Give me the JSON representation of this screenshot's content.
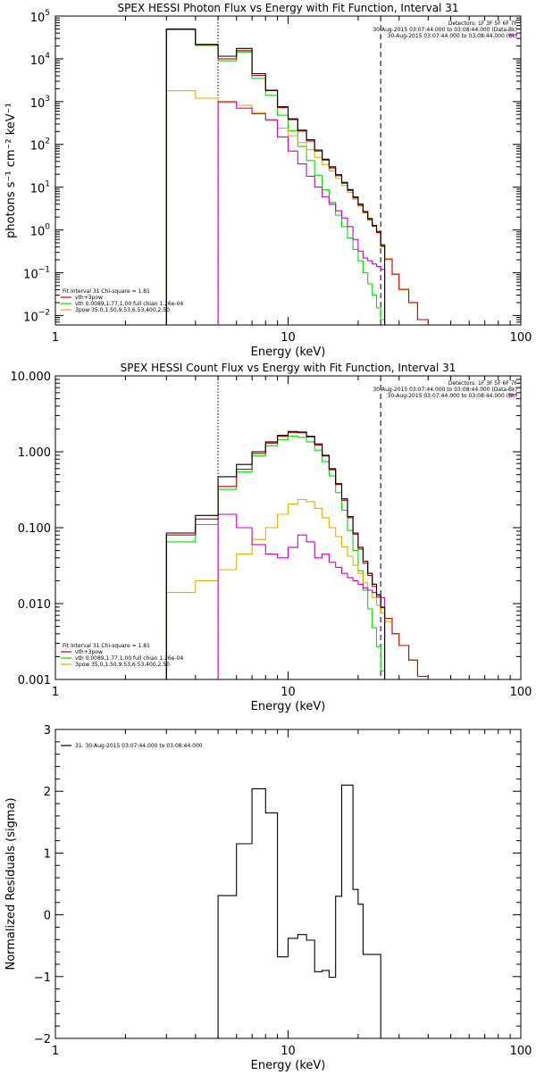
{
  "colors": {
    "frame": "#000000",
    "total": "#000000",
    "fit_sum": "#cc0000",
    "thermal": "#00e000",
    "nonthermal": "#e0b000",
    "background": "#cc00cc"
  },
  "chart_data": [
    {
      "type": "line",
      "title": "SPEX HESSI Photon Flux vs Energy with Fit Function, Interval 31",
      "xlabel": "Energy (keV)",
      "ylabel": "photons s⁻¹ cm⁻² keV⁻¹",
      "xscale": "log",
      "yscale": "log",
      "xlim": [
        1,
        100
      ],
      "ylim": [
        0.006,
        100000
      ],
      "x_ticks": [
        "1",
        "10",
        "100"
      ],
      "y_ticks": [
        {
          "value": 100000,
          "base": "10",
          "exp": "5"
        },
        {
          "value": 10000,
          "base": "10",
          "exp": "4"
        },
        {
          "value": 1000,
          "base": "10",
          "exp": "3"
        },
        {
          "value": 100,
          "base": "10",
          "exp": "2"
        },
        {
          "value": 10,
          "base": "10",
          "exp": "1"
        },
        {
          "value": 1,
          "base": "10",
          "exp": "0"
        },
        {
          "value": 0.1,
          "base": "10",
          "exp": "−1"
        },
        {
          "value": 0.01,
          "base": "10",
          "exp": "−2"
        }
      ],
      "vlines": [
        {
          "x": 5.0,
          "style": "dotted"
        },
        {
          "x": 25.0,
          "style": "dashed"
        }
      ],
      "info_lines": [
        "Detectors: 1F 3F 5F 6F 7F",
        "30-Aug-2015 03:07:44.000 to 03:08:44.000 (Data-Bk)",
        "30-Aug-2015 03:07:44.000 to 03:08:44.000 (Bk)"
      ],
      "legend_lines": [
        {
          "text": "Fit Interval 31     Chi-square = 1.81",
          "color": ""
        },
        {
          "text": "vth+3pow",
          "color": "fit_sum"
        },
        {
          "text": "vth 0.0089,1.77,1.00  full chian 1.26e-04",
          "color": "thermal"
        },
        {
          "text": "3pow 35.0,1.50,9.53,6.53,400,2.50",
          "color": "nonthermal"
        }
      ],
      "edges": [
        3.0,
        4.0,
        5.0,
        6.0,
        7.0,
        8.0,
        9.0,
        10.0,
        11.0,
        12.0,
        13.0,
        14.0,
        15.0,
        16.0,
        17.0,
        18.0,
        19.0,
        20.0,
        21.0,
        22.0,
        23.0,
        24.0,
        25.0,
        26.0,
        28.0,
        30.0,
        33.0,
        36.0,
        40.0
      ],
      "series": [
        {
          "key": "thermal",
          "range": [
            0,
            23
          ],
          "values": [
            48000,
            20500,
            9000,
            14500,
            3500,
            1400,
            480,
            210,
            90,
            42,
            19,
            8.7,
            4.4,
            2.2,
            1.2,
            0.65,
            0.35,
            0.19,
            0.1,
            0.055,
            0.03,
            0.015,
            0.008
          ]
        },
        {
          "key": "nonthermal",
          "range": [
            0,
            28
          ],
          "values": [
            1800,
            1200,
            950,
            820,
            550,
            360,
            240,
            160,
            110,
            75,
            50,
            34,
            24,
            16,
            11,
            7.5,
            5.2,
            3.6,
            2.5,
            1.7,
            1.2,
            0.85,
            0.4,
            0.2,
            0.09,
            0.04,
            0.02,
            0.008
          ]
        },
        {
          "key": "background",
          "range": [
            2,
            23
          ],
          "values": [
            1000,
            700,
            520,
            380,
            150,
            70,
            35,
            18,
            10,
            6.0,
            4.0,
            2.8,
            1.9,
            1.2,
            0.6,
            0.32,
            0.22,
            0.19,
            0.16,
            0.14,
            0.12
          ]
        },
        {
          "key": "fit_sum",
          "range": [
            0,
            28
          ],
          "values": [
            49500,
            21500,
            10000,
            15500,
            4100,
            1800,
            730,
            380,
            205,
            120,
            70,
            43,
            28,
            18.5,
            12.3,
            8.3,
            5.6,
            3.8,
            2.6,
            1.76,
            1.23,
            0.87,
            0.42,
            0.21,
            0.093,
            0.041,
            0.02,
            0.008
          ]
        },
        {
          "key": "total",
          "range": [
            0,
            23
          ],
          "values": [
            50000,
            21800,
            11500,
            17500,
            4500,
            1850,
            760,
            395,
            215,
            128,
            74,
            45,
            30,
            19.5,
            13.0,
            8.8,
            5.9,
            4.0,
            2.7,
            1.85,
            1.28,
            0.92,
            0.45
          ]
        }
      ]
    },
    {
      "type": "line",
      "title": "SPEX HESSI Count Flux vs Energy with Fit Function, Interval 31",
      "xlabel": "Energy (keV)",
      "ylabel": "",
      "xscale": "log",
      "yscale": "log",
      "xlim": [
        1,
        100
      ],
      "ylim": [
        0.001,
        10
      ],
      "x_ticks": [
        "1",
        "10",
        "100"
      ],
      "y_ticks": [
        {
          "value": 10,
          "text": "10.000"
        },
        {
          "value": 1,
          "text": "1.000"
        },
        {
          "value": 0.1,
          "text": "0.100"
        },
        {
          "value": 0.01,
          "text": "0.010"
        },
        {
          "value": 0.001,
          "text": "0.001"
        }
      ],
      "vlines": [
        {
          "x": 5.0,
          "style": "dotted"
        },
        {
          "x": 25.0,
          "style": "dashed"
        }
      ],
      "info_lines": [
        "Detectors: 1F 3F 5F 6F 7F",
        "30-Aug-2015 03:07:44.000 to 03:08:44.000 (Data-Bk)",
        "30-Aug-2015 03:07:44.000 to 03:08:44.000 (Bk)"
      ],
      "legend_lines": [
        {
          "text": "Fit Interval 31     Chi-square = 1.81",
          "color": ""
        },
        {
          "text": "vth+3pow",
          "color": "fit_sum"
        },
        {
          "text": "vth 0.0089,1.77,1.00  full chian 1.26e-04",
          "color": "thermal"
        },
        {
          "text": "3pow 35.0,1.50,9.53,6.53,400,2.50",
          "color": "nonthermal"
        }
      ],
      "edges": [
        3.0,
        4.0,
        5.0,
        6.0,
        7.0,
        8.0,
        9.0,
        10.0,
        11.0,
        12.0,
        13.0,
        14.0,
        15.0,
        16.0,
        17.0,
        18.0,
        19.0,
        20.0,
        21.0,
        22.0,
        23.0,
        24.0,
        25.0,
        26.0,
        28.0,
        30.0,
        33.0,
        36.0,
        40.0
      ],
      "series": [
        {
          "key": "thermal",
          "range": [
            0,
            23
          ],
          "values": [
            0.065,
            0.11,
            0.32,
            0.54,
            0.88,
            1.2,
            1.45,
            1.6,
            1.55,
            1.35,
            1.05,
            0.74,
            0.48,
            0.29,
            0.17,
            0.092,
            0.05,
            0.027,
            0.015,
            0.0085,
            0.0048,
            0.0027,
            0.0013
          ]
        },
        {
          "key": "nonthermal",
          "range": [
            0,
            28
          ],
          "values": [
            0.014,
            0.02,
            0.028,
            0.045,
            0.07,
            0.1,
            0.15,
            0.205,
            0.235,
            0.22,
            0.18,
            0.135,
            0.1,
            0.076,
            0.056,
            0.042,
            0.032,
            0.025,
            0.019,
            0.015,
            0.012,
            0.0095,
            0.0075,
            0.0058,
            0.004,
            0.0028,
            0.0018,
            0.0011
          ]
        },
        {
          "key": "background",
          "range": [
            2,
            23
          ],
          "values": [
            0.15,
            0.1,
            0.06,
            0.045,
            0.04,
            0.055,
            0.08,
            0.065,
            0.04,
            0.045,
            0.035,
            0.03,
            0.025,
            0.022,
            0.02,
            0.018,
            0.016,
            0.015,
            0.014,
            0.013,
            0.012
          ]
        },
        {
          "key": "fit_sum",
          "range": [
            0,
            28
          ],
          "values": [
            0.08,
            0.13,
            0.35,
            0.59,
            0.95,
            1.3,
            1.6,
            1.8,
            1.78,
            1.57,
            1.23,
            0.88,
            0.58,
            0.37,
            0.23,
            0.135,
            0.082,
            0.052,
            0.034,
            0.0235,
            0.0168,
            0.0122,
            0.0088,
            0.0064,
            0.004,
            0.0028,
            0.0018,
            0.0011
          ]
        },
        {
          "key": "total",
          "range": [
            0,
            23
          ],
          "values": [
            0.085,
            0.145,
            0.47,
            0.68,
            1.0,
            1.35,
            1.65,
            1.85,
            1.82,
            1.6,
            1.27,
            0.9,
            0.6,
            0.38,
            0.24,
            0.14,
            0.085,
            0.055,
            0.036,
            0.025,
            0.018,
            0.013,
            0.009
          ]
        }
      ]
    },
    {
      "type": "line",
      "title": "",
      "xlabel": "Energy (keV)",
      "ylabel": "Normalized Residuals (sigma)",
      "xscale": "log",
      "yscale": "linear",
      "xlim": [
        1,
        100
      ],
      "ylim": [
        -2,
        3
      ],
      "x_ticks": [
        "1",
        "10",
        "100"
      ],
      "y_ticks": [
        {
          "value": 3,
          "text": "3"
        },
        {
          "value": 2,
          "text": "2"
        },
        {
          "value": 1,
          "text": "1"
        },
        {
          "value": 0,
          "text": "0"
        },
        {
          "value": -1,
          "text": "−1"
        },
        {
          "value": -2,
          "text": "−2"
        }
      ],
      "legend_lines": [
        {
          "text": "31. 30-Aug-2015 03:07:44.000 to 03:08:44.000",
          "color": "total"
        }
      ],
      "edges": [
        5.0,
        6.0,
        7.0,
        8.0,
        9.0,
        10.0,
        11.0,
        12.0,
        13.0,
        14.0,
        15.0,
        16.0,
        17.0,
        18.0,
        19.0,
        20.0,
        21.0,
        22.0,
        23.0,
        24.0,
        25.0
      ],
      "series": [
        {
          "key": "total",
          "range": [
            0,
            20
          ],
          "drop_ends": true,
          "values": [
            0.31,
            1.15,
            2.04,
            1.65,
            -0.68,
            -0.38,
            -0.32,
            -0.41,
            -0.92,
            -0.9,
            -1.01,
            0.3,
            2.1,
            2.1,
            0.41,
            0.17,
            -0.64,
            -0.64,
            -0.64,
            -0.64
          ]
        }
      ]
    }
  ]
}
